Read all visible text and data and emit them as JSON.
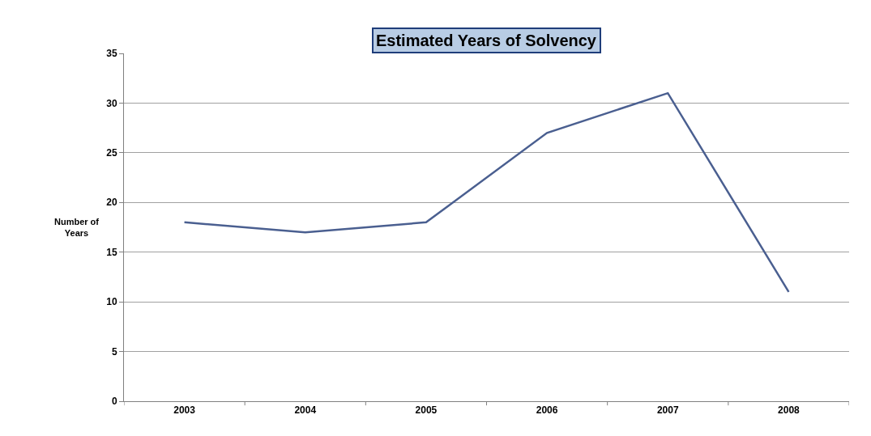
{
  "chart_data": {
    "type": "line",
    "title": "Estimated Years of Solvency",
    "ylabel": "Number of\nYears",
    "categories": [
      "2003",
      "2004",
      "2005",
      "2006",
      "2007",
      "2008"
    ],
    "series": [
      {
        "color": "#4a5f90",
        "values": [
          18,
          17,
          18,
          27,
          31,
          11
        ]
      }
    ],
    "ylim": [
      0,
      35
    ],
    "yticks": [
      0,
      5,
      10,
      15,
      20,
      25,
      30,
      35
    ],
    "grid": "y",
    "marker": "none",
    "line_style": "solid"
  }
}
